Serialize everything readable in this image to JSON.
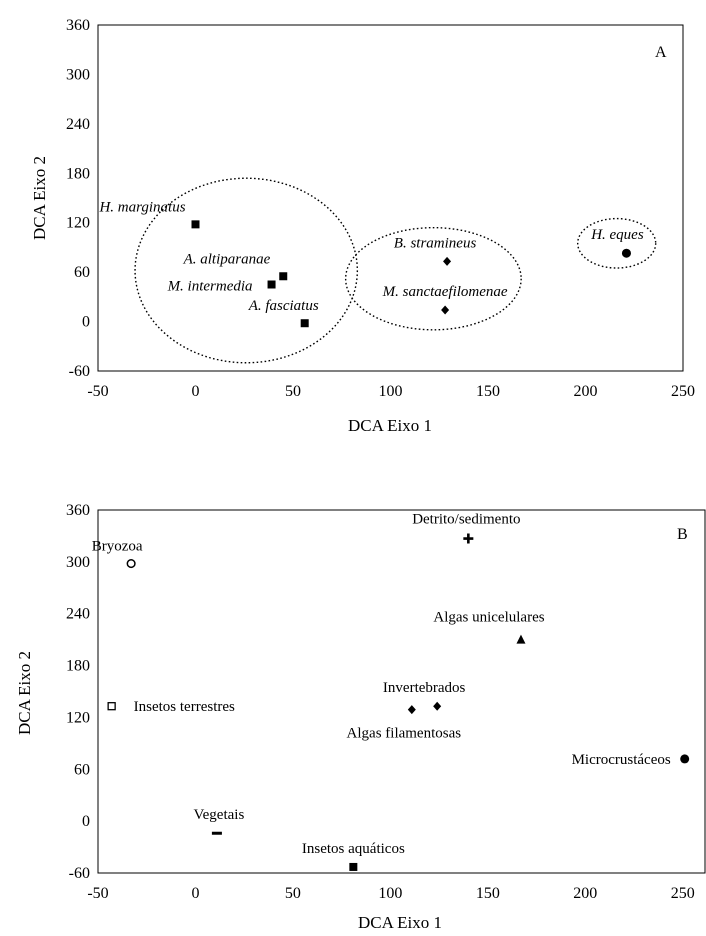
{
  "chart_data": [
    {
      "type": "scatter",
      "panel_label": "A",
      "xlabel": "DCA Eixo 1",
      "ylabel": "DCA Eixo 2",
      "xlim": [
        -50,
        250
      ],
      "ylim": [
        -60,
        360
      ],
      "xticks": [
        -50,
        0,
        50,
        100,
        150,
        200,
        250
      ],
      "yticks": [
        -60,
        0,
        60,
        120,
        180,
        240,
        300,
        360
      ],
      "grid": false,
      "legend": "none",
      "label_style": "italic",
      "points": [
        {
          "label": "H. marginatus",
          "x": 0,
          "y": 118,
          "marker": "square"
        },
        {
          "label": "A. altiparanae",
          "x": 45,
          "y": 55,
          "marker": "square"
        },
        {
          "label": "M. intermedia",
          "x": 39,
          "y": 45,
          "marker": "square"
        },
        {
          "label": "A. fasciatus",
          "x": 56,
          "y": -2,
          "marker": "square"
        },
        {
          "label": "B. stramineus",
          "x": 129,
          "y": 73,
          "marker": "diamond"
        },
        {
          "label": "M. sanctaefilomenae",
          "x": 128,
          "y": 14,
          "marker": "diamond"
        },
        {
          "label": "H. eques",
          "x": 221,
          "y": 83,
          "marker": "circle"
        }
      ],
      "groups": [
        {
          "cx": 26,
          "cy": 62,
          "rx": 57,
          "ry": 112
        },
        {
          "cx": 122,
          "cy": 52,
          "rx": 45,
          "ry": 62
        },
        {
          "cx": 216,
          "cy": 95,
          "rx": 20,
          "ry": 30
        }
      ]
    },
    {
      "type": "scatter",
      "panel_label": "B",
      "xlabel": "DCA Eixo 1",
      "ylabel": "DCA Eixo 2",
      "xlim": [
        -50,
        255
      ],
      "ylim": [
        -60,
        360
      ],
      "xticks": [
        -50,
        0,
        50,
        100,
        150,
        200,
        250
      ],
      "yticks": [
        -60,
        0,
        60,
        120,
        180,
        240,
        300,
        360
      ],
      "grid": false,
      "legend": "none",
      "label_style": "normal",
      "points": [
        {
          "label": "Detrito/sedimento",
          "x": 140,
          "y": 327,
          "marker": "plus"
        },
        {
          "label": "Bryozoa",
          "x": -33,
          "y": 298,
          "marker": "open-circle"
        },
        {
          "label": "Algas unicelulares",
          "x": 167,
          "y": 210,
          "marker": "triangle"
        },
        {
          "label": "Insetos terrestres",
          "x": -43,
          "y": 133,
          "marker": "open-square"
        },
        {
          "label": "Invertebrados",
          "x": 124,
          "y": 133,
          "marker": "diamond"
        },
        {
          "label": "Algas filamentosas",
          "x": 111,
          "y": 129,
          "marker": "diamond"
        },
        {
          "label": "Microcrustáceos",
          "x": 251,
          "y": 72,
          "marker": "circle"
        },
        {
          "label": "Vegetais",
          "x": 11,
          "y": -14,
          "marker": "dash"
        },
        {
          "label": "Insetos aquáticos",
          "x": 81,
          "y": -53,
          "marker": "square"
        }
      ]
    }
  ]
}
